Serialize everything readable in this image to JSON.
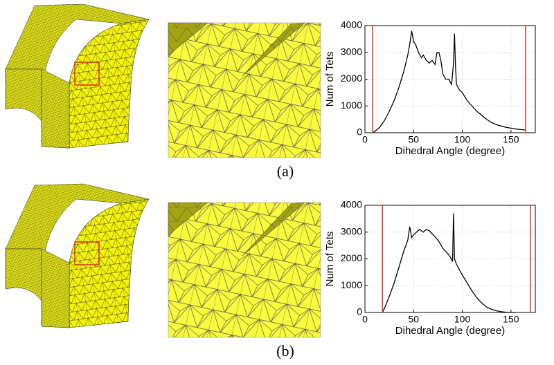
{
  "chart_data": [
    {
      "type": "line",
      "x": [
        8,
        10,
        15,
        20,
        25,
        30,
        35,
        40,
        44,
        46,
        48,
        50,
        52,
        55,
        58,
        60,
        63,
        66,
        69,
        72,
        74,
        76,
        78,
        80,
        83,
        86,
        89,
        91,
        92,
        93,
        94,
        97,
        100,
        105,
        110,
        115,
        120,
        125,
        130,
        135,
        140,
        145,
        150,
        155,
        160,
        165
      ],
      "series": [
        {
          "color": "#000000",
          "values": [
            0,
            50,
            200,
            450,
            800,
            1200,
            1700,
            2300,
            2900,
            3300,
            3800,
            3400,
            3300,
            3000,
            2800,
            2900,
            2700,
            2600,
            2700,
            2550,
            3000,
            3000,
            2700,
            2200,
            2000,
            2000,
            1800,
            2600,
            3700,
            2500,
            1800,
            1600,
            1500,
            1200,
            1000,
            800,
            650,
            500,
            380,
            300,
            250,
            200,
            170,
            140,
            120,
            100
          ]
        }
      ],
      "vlines": [
        {
          "value": 8,
          "color": "#e0301e"
        },
        {
          "value": 165,
          "color": "#e0301e"
        }
      ],
      "xlabel": "Dihedral Angle (degree)",
      "ylabel": "Num of Tets",
      "xlim": [
        0,
        175
      ],
      "ylim": [
        0,
        4000
      ],
      "xticks": [
        0,
        50,
        100,
        150
      ],
      "yticks": [
        0,
        1000,
        2000,
        3000,
        4000
      ],
      "grid": true
    },
    {
      "type": "line",
      "x": [
        18,
        20,
        25,
        30,
        35,
        40,
        44,
        46,
        48,
        50,
        53,
        56,
        60,
        63,
        66,
        70,
        75,
        80,
        85,
        88,
        90,
        91,
        92,
        94,
        97,
        100,
        105,
        110,
        115,
        120,
        125,
        130,
        135,
        140,
        145,
        150,
        155
      ],
      "series": [
        {
          "color": "#000000",
          "values": [
            0,
            150,
            600,
            1100,
            1700,
            2300,
            2700,
            3200,
            2800,
            2900,
            3000,
            3100,
            3000,
            3100,
            3050,
            2900,
            2700,
            2400,
            2200,
            2050,
            1900,
            3700,
            2000,
            1800,
            1600,
            1400,
            1100,
            800,
            550,
            350,
            200,
            120,
            60,
            30,
            10,
            0,
            0
          ]
        }
      ],
      "vlines": [
        {
          "value": 18,
          "color": "#e0301e"
        },
        {
          "value": 170,
          "color": "#e0301e"
        }
      ],
      "xlabel": "Dihedral Angle (degree)",
      "ylabel": "Num of Tets",
      "xlim": [
        0,
        175
      ],
      "ylim": [
        0,
        4000
      ],
      "xticks": [
        0,
        50,
        100,
        150
      ],
      "yticks": [
        0,
        1000,
        2000,
        3000,
        4000
      ],
      "grid": true
    }
  ],
  "captions": [
    "(a)",
    "(b)"
  ]
}
